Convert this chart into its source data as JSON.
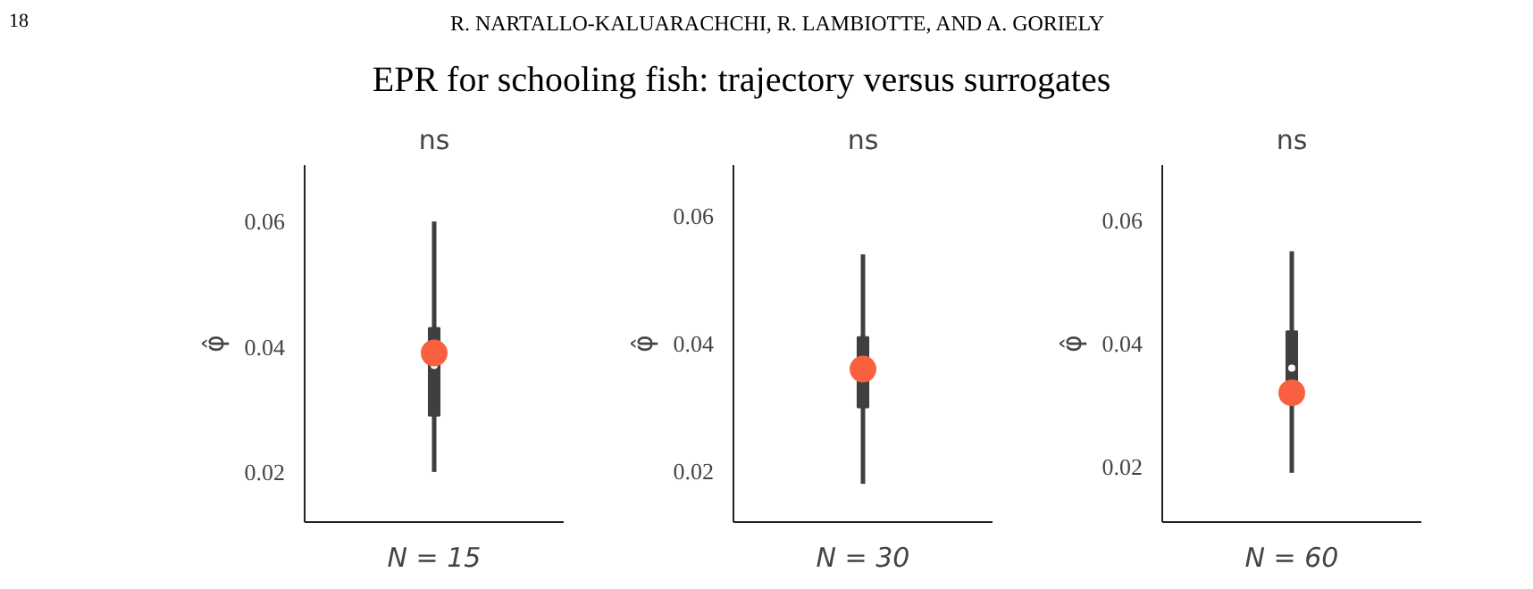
{
  "chart_data": [
    {
      "type": "box",
      "title": "ns",
      "xlabel": "N = 15",
      "ylabel": "φ̂",
      "annotations": [
        "18",
        "R. NARTALLO-KALUARACHCHI, R. LAMBIOTTE, AND A. GORIELY",
        "EPR for schooling fish: trajectory versus surrogates"
      ],
      "categories": [
        null
      ],
      "ylim": [
        0.012,
        0.069
      ],
      "yticks": [
        0.02,
        0.04,
        0.06
      ],
      "grid": false,
      "tick_labels": "y",
      "series": [
        {
          "type": "box",
          "color": "#3f3f3f",
          "boxes": [
            {
              "low": 0.02,
              "q1": 0.029,
              "median": 0.037,
              "q3": 0.043,
              "high": 0.06
            }
          ]
        },
        {
          "type": "scatter",
          "color": "#f8603f",
          "marker": "circle",
          "values": [
            0.039
          ]
        }
      ]
    },
    {
      "type": "box",
      "title": "ns",
      "xlabel": "N = 30",
      "ylabel": "φ̂",
      "categories": [
        null
      ],
      "ylim": [
        0.012,
        0.068
      ],
      "yticks": [
        0.02,
        0.04,
        0.06
      ],
      "grid": false,
      "tick_labels": "y",
      "series": [
        {
          "type": "box",
          "color": "#3f3f3f",
          "boxes": [
            {
              "low": 0.018,
              "q1": 0.03,
              "median": 0.035,
              "q3": 0.041,
              "high": 0.054
            }
          ]
        },
        {
          "type": "scatter",
          "color": "#f8603f",
          "marker": "circle",
          "values": [
            0.036
          ]
        }
      ]
    },
    {
      "type": "box",
      "title": "ns",
      "xlabel": "N = 60",
      "ylabel": "φ̂",
      "categories": [
        null
      ],
      "ylim": [
        0.011,
        0.069
      ],
      "yticks": [
        0.02,
        0.04,
        0.06
      ],
      "grid": false,
      "tick_labels": "y",
      "series": [
        {
          "type": "box",
          "color": "#3f3f3f",
          "boxes": [
            {
              "low": 0.019,
              "q1": 0.032,
              "median": 0.036,
              "q3": 0.042,
              "high": 0.055
            }
          ]
        },
        {
          "type": "scatter",
          "color": "#f8603f",
          "marker": "circle",
          "values": [
            0.032
          ]
        }
      ]
    }
  ]
}
